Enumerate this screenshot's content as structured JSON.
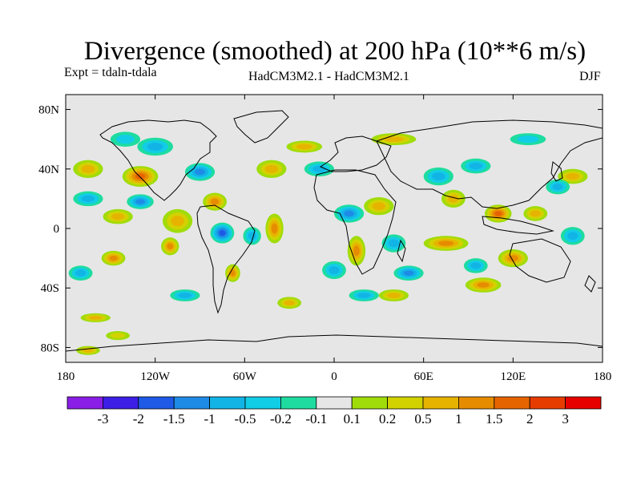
{
  "chart_data": {
    "type": "heatmap",
    "title": "Divergence (smoothed) at 200 hPa (10**6 m/s)",
    "subtitle_left": "Expt = tdaln-tdala",
    "subtitle_center": "HadCM3M2.1 - HadCM3M2.1",
    "subtitle_right": "DJF",
    "x_ticks": [
      "180",
      "120W",
      "60W",
      "0",
      "60E",
      "120E",
      "180"
    ],
    "y_ticks": [
      "80N",
      "40N",
      "0",
      "40S",
      "80S"
    ],
    "colorbar": {
      "levels": [
        "-3",
        "-2",
        "-1.5",
        "-1",
        "-0.5",
        "-0.2",
        "-0.1",
        "0.1",
        "0.2",
        "0.5",
        "1",
        "1.5",
        "2",
        "3"
      ],
      "colors": [
        "#8a1ee6",
        "#3c1ee6",
        "#1e5ae6",
        "#1e8ce6",
        "#12b4e6",
        "#12cde6",
        "#1edca0",
        "#e6e6e6",
        "#a0dc0a",
        "#d2d200",
        "#e6b400",
        "#e68c00",
        "#e66400",
        "#e63c00",
        "#e60000"
      ]
    },
    "anomalies": [
      {
        "lon": -130,
        "lat": 35,
        "value": 1.6,
        "extent_lon": 12,
        "extent_lat": 7
      },
      {
        "lon": -165,
        "lat": 40,
        "value": 0.7,
        "extent_lon": 10,
        "extent_lat": 6
      },
      {
        "lon": -145,
        "lat": 8,
        "value": 0.6,
        "extent_lon": 10,
        "extent_lat": 5
      },
      {
        "lon": -105,
        "lat": 5,
        "value": 0.9,
        "extent_lon": 10,
        "extent_lat": 8
      },
      {
        "lon": -80,
        "lat": 18,
        "value": 1.0,
        "extent_lon": 8,
        "extent_lat": 6
      },
      {
        "lon": -148,
        "lat": -20,
        "value": 1.2,
        "extent_lon": 8,
        "extent_lat": 5
      },
      {
        "lon": -110,
        "lat": -12,
        "value": 1.1,
        "extent_lon": 6,
        "extent_lat": 6
      },
      {
        "lon": -68,
        "lat": -30,
        "value": 1.4,
        "extent_lon": 5,
        "extent_lat": 6
      },
      {
        "lon": -40,
        "lat": 0,
        "value": 1.0,
        "extent_lon": 6,
        "extent_lat": 10
      },
      {
        "lon": -42,
        "lat": 40,
        "value": 0.6,
        "extent_lon": 10,
        "extent_lat": 6
      },
      {
        "lon": -20,
        "lat": 55,
        "value": 0.6,
        "extent_lon": 12,
        "extent_lat": 4
      },
      {
        "lon": 40,
        "lat": 60,
        "value": 0.5,
        "extent_lon": 15,
        "extent_lat": 4
      },
      {
        "lon": 30,
        "lat": 15,
        "value": 0.8,
        "extent_lon": 10,
        "extent_lat": 6
      },
      {
        "lon": 15,
        "lat": -15,
        "value": 1.0,
        "extent_lon": 6,
        "extent_lat": 10
      },
      {
        "lon": 75,
        "lat": -10,
        "value": 1.3,
        "extent_lon": 15,
        "extent_lat": 5
      },
      {
        "lon": 80,
        "lat": 20,
        "value": 0.7,
        "extent_lon": 8,
        "extent_lat": 6
      },
      {
        "lon": 110,
        "lat": 10,
        "value": 1.8,
        "extent_lon": 9,
        "extent_lat": 6
      },
      {
        "lon": 135,
        "lat": 10,
        "value": 0.8,
        "extent_lon": 8,
        "extent_lat": 5
      },
      {
        "lon": 120,
        "lat": -20,
        "value": 1.3,
        "extent_lon": 10,
        "extent_lat": 6
      },
      {
        "lon": 100,
        "lat": -38,
        "value": 1.0,
        "extent_lon": 12,
        "extent_lat": 5
      },
      {
        "lon": 160,
        "lat": 35,
        "value": 0.6,
        "extent_lon": 10,
        "extent_lat": 5
      },
      {
        "lon": -30,
        "lat": -50,
        "value": 0.7,
        "extent_lon": 8,
        "extent_lat": 4
      },
      {
        "lon": 40,
        "lat": -45,
        "value": 0.6,
        "extent_lon": 10,
        "extent_lat": 4
      },
      {
        "lon": -165,
        "lat": -82,
        "value": 0.5,
        "extent_lon": 8,
        "extent_lat": 3
      },
      {
        "lon": -145,
        "lat": -72,
        "value": 0.4,
        "extent_lon": 8,
        "extent_lat": 3
      },
      {
        "lon": -160,
        "lat": -60,
        "value": 0.5,
        "extent_lon": 10,
        "extent_lat": 3
      },
      {
        "lon": -120,
        "lat": 55,
        "value": -0.6,
        "extent_lon": 12,
        "extent_lat": 6
      },
      {
        "lon": -140,
        "lat": 60,
        "value": -0.4,
        "extent_lon": 10,
        "extent_lat": 5
      },
      {
        "lon": -165,
        "lat": 20,
        "value": -0.7,
        "extent_lon": 10,
        "extent_lat": 5
      },
      {
        "lon": -130,
        "lat": 18,
        "value": -1.0,
        "extent_lon": 9,
        "extent_lat": 5
      },
      {
        "lon": -90,
        "lat": 38,
        "value": -1.1,
        "extent_lon": 10,
        "extent_lat": 6
      },
      {
        "lon": -75,
        "lat": -3,
        "value": -1.5,
        "extent_lon": 8,
        "extent_lat": 7
      },
      {
        "lon": -55,
        "lat": -5,
        "value": -0.9,
        "extent_lon": 6,
        "extent_lat": 6
      },
      {
        "lon": -10,
        "lat": 40,
        "value": -0.8,
        "extent_lon": 10,
        "extent_lat": 5
      },
      {
        "lon": 10,
        "lat": 10,
        "value": -1.0,
        "extent_lon": 10,
        "extent_lat": 6
      },
      {
        "lon": 0,
        "lat": -28,
        "value": -0.9,
        "extent_lon": 8,
        "extent_lat": 6
      },
      {
        "lon": 40,
        "lat": -10,
        "value": -0.6,
        "extent_lon": 8,
        "extent_lat": 6
      },
      {
        "lon": 50,
        "lat": -30,
        "value": -1.2,
        "extent_lon": 10,
        "extent_lat": 5
      },
      {
        "lon": 70,
        "lat": 35,
        "value": -0.7,
        "extent_lon": 10,
        "extent_lat": 6
      },
      {
        "lon": 95,
        "lat": 42,
        "value": -0.5,
        "extent_lon": 10,
        "extent_lat": 5
      },
      {
        "lon": 95,
        "lat": -25,
        "value": -0.8,
        "extent_lon": 8,
        "extent_lat": 5
      },
      {
        "lon": 150,
        "lat": 28,
        "value": -0.6,
        "extent_lon": 8,
        "extent_lat": 5
      },
      {
        "lon": 160,
        "lat": -5,
        "value": -0.9,
        "extent_lon": 8,
        "extent_lat": 6
      },
      {
        "lon": -170,
        "lat": -30,
        "value": -0.5,
        "extent_lon": 8,
        "extent_lat": 5
      },
      {
        "lon": 20,
        "lat": -45,
        "value": -0.6,
        "extent_lon": 10,
        "extent_lat": 4
      },
      {
        "lon": -100,
        "lat": -45,
        "value": -0.5,
        "extent_lon": 10,
        "extent_lat": 4
      },
      {
        "lon": 130,
        "lat": 60,
        "value": -0.4,
        "extent_lon": 12,
        "extent_lat": 4
      }
    ]
  }
}
